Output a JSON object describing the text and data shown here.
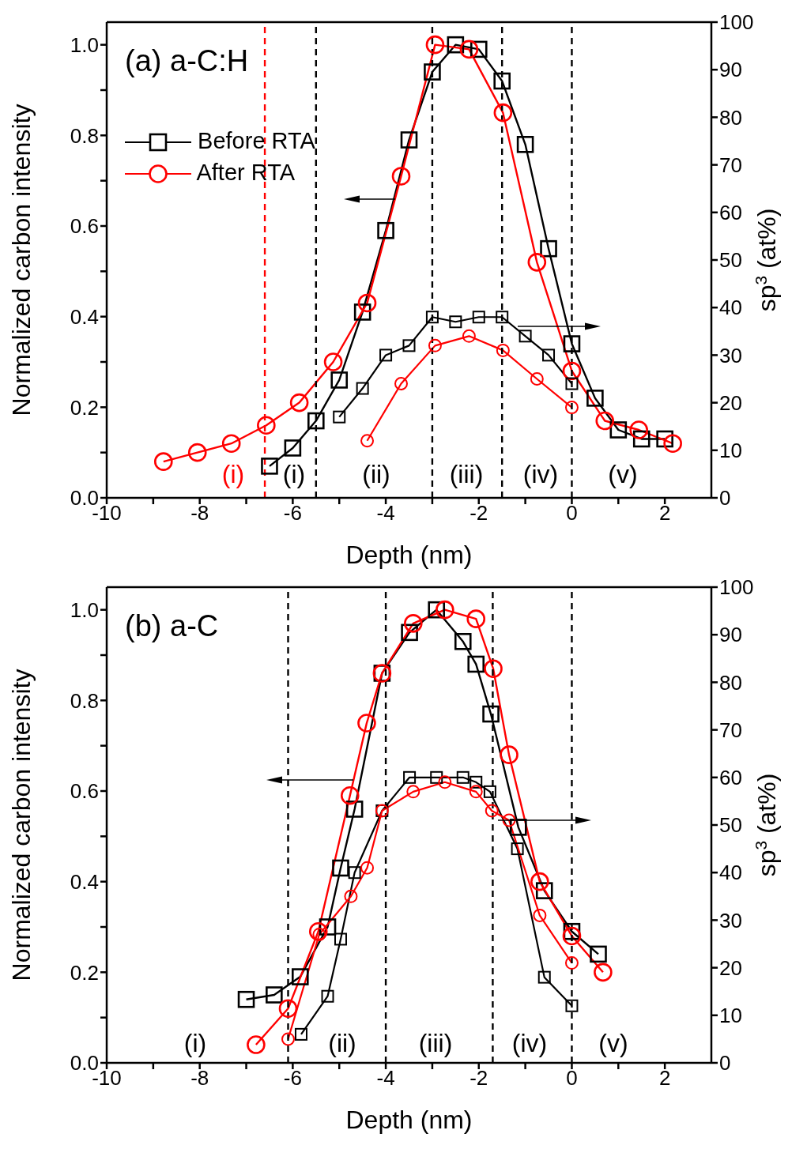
{
  "chart_data": [
    {
      "type": "line",
      "title": "(a) a-C:H",
      "xlabel": "Depth (nm)",
      "ylabel": "Normalized carbon intensity",
      "y2label": "sp$^{3}$ (at%)",
      "xlim": [
        -10,
        3
      ],
      "xticks": [
        -10,
        {
          "value": -9,
          "label": null
        },
        -8,
        {
          "value": -7,
          "label": null
        },
        -6,
        {
          "value": -5,
          "label": null
        },
        -4,
        {
          "value": -3,
          "label": null
        },
        -2,
        {
          "value": -1,
          "label": null
        },
        0,
        {
          "value": 1,
          "label": null
        },
        2
      ],
      "ylim": [
        0,
        1.05
      ],
      "yticks": [
        {
          "value": 0,
          "label": "0.0"
        },
        {
          "value": 0.1,
          "label": null
        },
        {
          "value": 0.2,
          "label": "0.2"
        },
        {
          "value": 0.3,
          "label": null
        },
        {
          "value": 0.4,
          "label": "0.4"
        },
        {
          "value": 0.5,
          "label": null
        },
        {
          "value": 0.6,
          "label": "0.6"
        },
        {
          "value": 0.7,
          "label": null
        },
        {
          "value": 0.8,
          "label": "0.8"
        },
        {
          "value": 0.9,
          "label": null
        },
        {
          "value": 1,
          "label": "1.0"
        }
      ],
      "y2lim": [
        0,
        100
      ],
      "y2ticks": [
        0,
        10,
        20,
        30,
        40,
        50,
        60,
        70,
        80,
        90,
        100
      ],
      "legend": "top left",
      "series": [
        {
          "name": "Before RTA",
          "color": "#000000",
          "marker": "square",
          "x": [
            -6.5,
            -6,
            -5.5,
            -5,
            -4.5,
            -4,
            -3.5,
            -3,
            -2.5,
            -2,
            -1.5,
            -1,
            -0.5,
            0,
            0.5,
            1,
            1.5,
            2
          ],
          "values": [
            0.07,
            0.11,
            0.17,
            0.26,
            0.41,
            0.59,
            0.79,
            0.94,
            1.0,
            0.99,
            0.92,
            0.78,
            0.55,
            0.34,
            0.22,
            0.15,
            0.13,
            0.13
          ]
        },
        {
          "name": "After RTA",
          "color": "#ff0000",
          "marker": "circle",
          "x": [
            -8.78,
            -8.05,
            -7.32,
            -6.57,
            -5.86,
            -5.13,
            -4.4,
            -3.67,
            -2.94,
            -2.21,
            -1.48,
            -0.75,
            0,
            0.71,
            1.44,
            2.17
          ],
          "values": [
            0.08,
            0.1,
            0.12,
            0.16,
            0.21,
            0.3,
            0.43,
            0.71,
            1.0,
            0.99,
            0.85,
            0.52,
            0.28,
            0.17,
            0.15,
            0.12
          ]
        },
        {
          "color": "#000000",
          "marker": "square",
          "axis": "y2",
          "x": [
            -5,
            -4.5,
            -4,
            -3.5,
            -3,
            -2.5,
            -2,
            -1.5,
            -1,
            -0.5,
            0
          ],
          "values": [
            17,
            23,
            30,
            32,
            38,
            37,
            38,
            38,
            34,
            30,
            24
          ]
        },
        {
          "color": "#ff0000",
          "marker": "circle",
          "axis": "y2",
          "x": [
            -4.4,
            -3.67,
            -2.94,
            -2.21,
            -1.48,
            -0.75,
            0
          ],
          "values": [
            12,
            24,
            32,
            34,
            31,
            25,
            19
          ]
        }
      ],
      "ref_lines": [
        {
          "axis": "x",
          "value": -6.6,
          "color": "#ff0000",
          "line_style": "dashed"
        },
        {
          "axis": "x",
          "value": -5.5,
          "color": "#000000",
          "line_style": "dashed"
        },
        {
          "axis": "x",
          "value": -3,
          "color": "#000000",
          "line_style": "dashed"
        },
        {
          "axis": "x",
          "value": -1.5,
          "color": "#000000",
          "line_style": "dashed"
        },
        {
          "axis": "x",
          "value": 0,
          "color": "#000000",
          "line_style": "dashed"
        }
      ],
      "annotations": [
        "(i)",
        "(i)",
        "(ii)",
        "(iii)",
        "(iv)",
        "(v)"
      ]
    },
    {
      "type": "line",
      "title": "(b) a-C",
      "xlabel": "Depth (nm)",
      "ylabel": "Normalized carbon intensity",
      "y2label": "sp$^{3}$ (at%)",
      "xlim": [
        -10,
        3
      ],
      "xticks": [
        -10,
        {
          "value": -9,
          "label": null
        },
        -8,
        {
          "value": -7,
          "label": null
        },
        -6,
        {
          "value": -5,
          "label": null
        },
        -4,
        {
          "value": -3,
          "label": null
        },
        -2,
        {
          "value": -1,
          "label": null
        },
        0,
        {
          "value": 1,
          "label": null
        },
        2
      ],
      "ylim": [
        0,
        1.05
      ],
      "yticks": [
        {
          "value": 0,
          "label": "0.0"
        },
        {
          "value": 0.1,
          "label": null
        },
        {
          "value": 0.2,
          "label": "0.2"
        },
        {
          "value": 0.3,
          "label": null
        },
        {
          "value": 0.4,
          "label": "0.4"
        },
        {
          "value": 0.5,
          "label": null
        },
        {
          "value": 0.6,
          "label": "0.6"
        },
        {
          "value": 0.7,
          "label": null
        },
        {
          "value": 0.8,
          "label": "0.8"
        },
        {
          "value": 0.9,
          "label": null
        },
        {
          "value": 1,
          "label": "1.0"
        }
      ],
      "y2lim": [
        0,
        100
      ],
      "y2ticks": [
        0,
        10,
        20,
        30,
        40,
        50,
        60,
        70,
        80,
        90,
        100
      ],
      "series": [
        {
          "color": "#000000",
          "marker": "square",
          "x": [
            -7.0,
            -6.4,
            -5.84,
            -5.25,
            -4.97,
            -4.67,
            -4.08,
            -3.49,
            -2.91,
            -2.34,
            -2.06,
            -1.74,
            -1.15,
            -0.59,
            0,
            0.57
          ],
          "values": [
            0.14,
            0.15,
            0.19,
            0.3,
            0.43,
            0.56,
            0.86,
            0.95,
            1.0,
            0.93,
            0.88,
            0.77,
            0.52,
            0.38,
            0.29,
            0.24
          ]
        },
        {
          "color": "#ff0000",
          "marker": "circle",
          "x": [
            -6.79,
            -6.1,
            -5.45,
            -4.77,
            -4.41,
            -4.08,
            -3.41,
            -2.73,
            -2.06,
            -1.69,
            -1.35,
            -0.69,
            0,
            0.67
          ],
          "values": [
            0.04,
            0.12,
            0.29,
            0.59,
            0.75,
            0.86,
            0.97,
            1.0,
            0.98,
            0.87,
            0.68,
            0.4,
            0.28,
            0.2
          ]
        },
        {
          "color": "#000000",
          "marker": "square",
          "axis": "y2",
          "x": [
            -5.82,
            -5.25,
            -4.97,
            -4.67,
            -4.08,
            -3.49,
            -2.91,
            -2.34,
            -2.06,
            -1.76,
            -1.17,
            -0.59,
            0
          ],
          "values": [
            6,
            14,
            26,
            40,
            53,
            60,
            60,
            60,
            59,
            57,
            45,
            18,
            12
          ]
        },
        {
          "color": "#ff0000",
          "marker": "circle",
          "axis": "y2",
          "x": [
            -6.1,
            -5.43,
            -4.75,
            -4.4,
            -4.08,
            -3.41,
            -2.73,
            -2.06,
            -1.72,
            -1.35,
            -0.69,
            0
          ],
          "values": [
            5,
            27,
            35,
            41,
            53,
            57,
            59,
            57,
            53,
            51,
            31,
            21
          ]
        }
      ],
      "ref_lines": [
        {
          "axis": "x",
          "value": -6.1,
          "color": "#000000",
          "line_style": "dashed"
        },
        {
          "axis": "x",
          "value": -4,
          "color": "#000000",
          "line_style": "dashed"
        },
        {
          "axis": "x",
          "value": -1.7,
          "color": "#000000",
          "line_style": "dashed"
        },
        {
          "axis": "x",
          "value": 0,
          "color": "#000000",
          "line_style": "dashed"
        }
      ],
      "annotations": [
        "(i)",
        "(ii)",
        "(iii)",
        "(iv)",
        "(v)"
      ]
    }
  ]
}
